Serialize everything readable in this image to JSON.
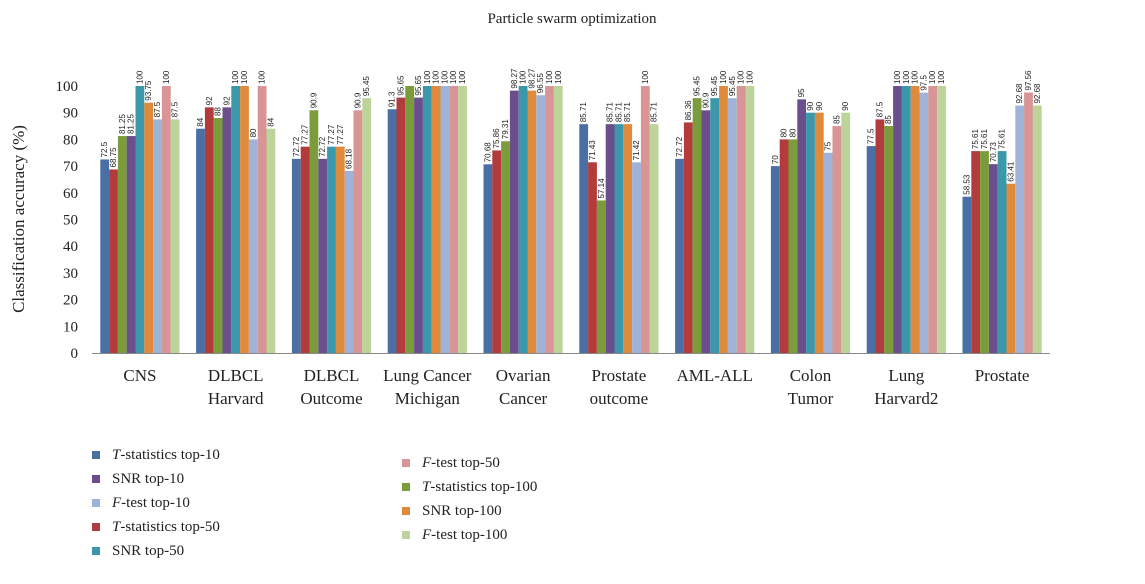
{
  "chart_data": {
    "type": "bar",
    "title": "Particle swarm optimization",
    "ylabel": "Classification accuracy (%)",
    "xlabel": "",
    "ylim": [
      0,
      100
    ],
    "yticks": [
      0,
      10,
      20,
      30,
      40,
      50,
      60,
      70,
      80,
      90,
      100
    ],
    "legend_position": "bottom-left",
    "categories": [
      [
        "CNS"
      ],
      [
        "DLBCL",
        "Harvard"
      ],
      [
        "DLBCL",
        "Outcome"
      ],
      [
        "Lung Cancer",
        "Michigan"
      ],
      [
        "Ovarian",
        "Cancer"
      ],
      [
        "Prostate",
        "outcome"
      ],
      [
        "AML-ALL"
      ],
      [
        "Colon",
        "Tumor"
      ],
      [
        "Lung",
        "Harvard2"
      ],
      [
        "Prostate"
      ]
    ],
    "series": [
      {
        "name": "T-statistics top-10",
        "italic_prefix": "T",
        "rest": "-statistics top-10",
        "color": "#4a6fa5",
        "values": [
          72.5,
          84,
          72.72,
          91.3,
          70.68,
          85.71,
          72.72,
          70,
          77.5,
          58.53
        ],
        "labels": [
          "72.5",
          "84",
          "72.72",
          "91.3",
          "70.68",
          "85.71",
          "72.72",
          "70",
          "77.5",
          "58.53"
        ]
      },
      {
        "name": "T-statistics top-50",
        "italic_prefix": "T",
        "rest": "-statistics top-50",
        "color": "#b23b3b",
        "values": [
          68.75,
          92,
          77.27,
          95.65,
          75.86,
          71.43,
          86.36,
          80,
          87.5,
          75.61
        ],
        "labels": [
          "68.75",
          "92",
          "77.27",
          "95.65",
          "75.86",
          "71.43",
          "86.36",
          "80",
          "87.5",
          "75.61"
        ]
      },
      {
        "name": "T-statistics top-100",
        "italic_prefix": "T",
        "rest": "-statistics top-100",
        "color": "#7a9c3a",
        "values": [
          81.25,
          88,
          90.9,
          100,
          79.31,
          57.14,
          95.45,
          80,
          85,
          75.61
        ],
        "labels": [
          "81.25",
          "88",
          "90.9",
          "",
          "79.31",
          "57.14",
          "95.45",
          "80",
          "85",
          "75.61"
        ]
      },
      {
        "name": "SNR top-10",
        "italic_prefix": "",
        "rest": "SNR top-10",
        "color": "#6b4f8c",
        "values": [
          81.25,
          92,
          72.72,
          95.65,
          98.27,
          85.71,
          90.9,
          95,
          100,
          70.73
        ],
        "labels": [
          "81.25",
          "92",
          "72.72",
          "95.65",
          "98.27",
          "85.71",
          "90.9",
          "95",
          "100",
          "70.73"
        ]
      },
      {
        "name": "SNR top-50",
        "italic_prefix": "",
        "rest": "SNR top-50",
        "color": "#3a98aa",
        "values": [
          100,
          100,
          77.27,
          100,
          100,
          85.71,
          95.45,
          90,
          100,
          75.61
        ],
        "labels": [
          "100",
          "100",
          "77.27",
          "100",
          "100",
          "85.71",
          "95.45",
          "90",
          "100",
          "75.61"
        ]
      },
      {
        "name": "SNR top-100",
        "italic_prefix": "",
        "rest": "SNR top-100",
        "color": "#e08a3c",
        "values": [
          93.75,
          100,
          77.27,
          100,
          98.27,
          85.71,
          100,
          90,
          100,
          63.41
        ],
        "labels": [
          "93.75",
          "100",
          "77.27",
          "100",
          "98.27",
          "85.71",
          "100",
          "90",
          "100",
          "63.41"
        ]
      },
      {
        "name": "F-test top-10",
        "italic_prefix": "F",
        "rest": "-test top-10",
        "color": "#9fb3d8",
        "values": [
          87.5,
          80,
          68.18,
          100,
          96.55,
          71.42,
          95.45,
          75,
          97.5,
          92.68
        ],
        "labels": [
          "87.5",
          "80",
          "68.18",
          "100",
          "96.55",
          "71.42",
          "95.45",
          "75",
          "97.5",
          "92.68"
        ]
      },
      {
        "name": "F-test top-50",
        "italic_prefix": "F",
        "rest": "-test top-50",
        "color": "#d99595",
        "values": [
          100,
          100,
          90.9,
          100,
          100,
          100,
          100,
          85,
          100,
          97.56
        ],
        "labels": [
          "100",
          "100",
          "90.9",
          "100",
          "100",
          "100",
          "100",
          "85",
          "100",
          "97.56"
        ]
      },
      {
        "name": "F-test top-100",
        "italic_prefix": "F",
        "rest": "-test top-100",
        "color": "#bcd49a",
        "values": [
          87.5,
          84,
          95.45,
          100,
          100,
          85.71,
          100,
          90,
          100,
          92.68
        ],
        "labels": [
          "87.5",
          "84",
          "95.45",
          "100",
          "100",
          "85.71",
          "100",
          "90",
          "100",
          "92.68"
        ]
      }
    ],
    "legend_order": [
      0,
      3,
      6,
      1,
      4,
      7,
      2,
      5,
      8
    ]
  }
}
